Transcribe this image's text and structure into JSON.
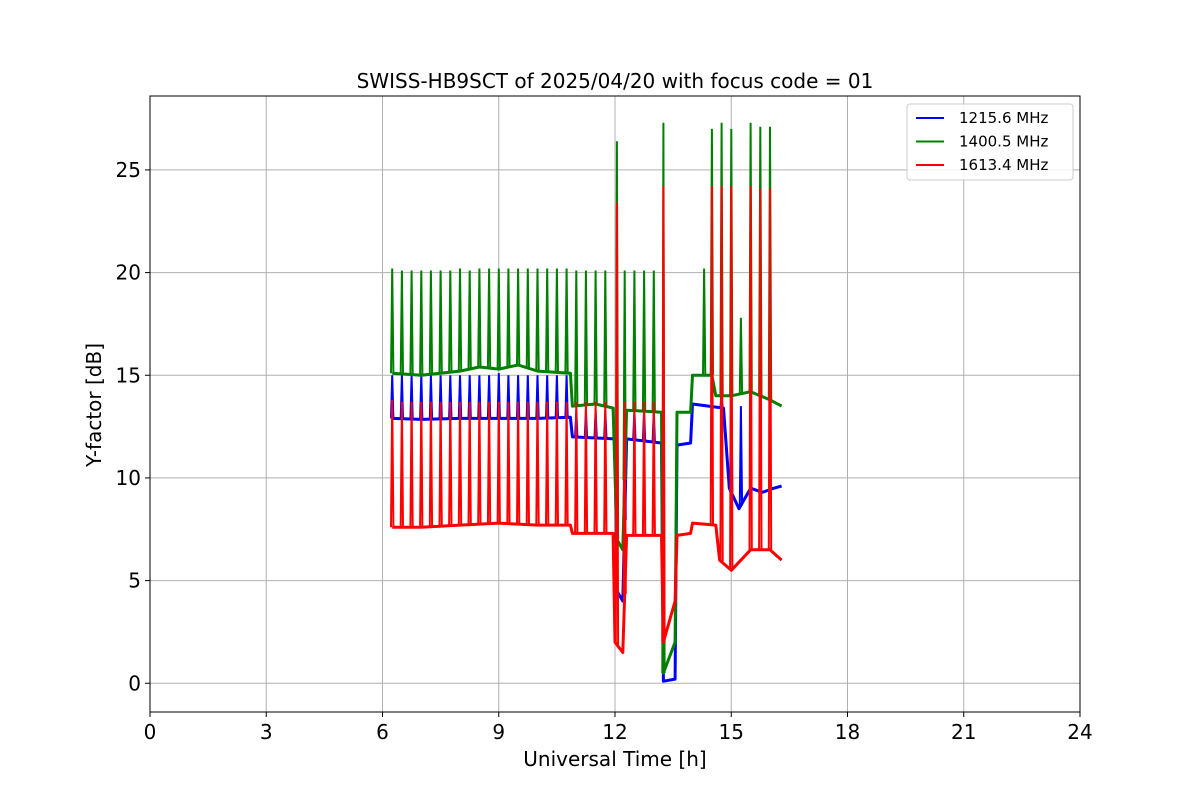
{
  "chart_data": {
    "type": "line",
    "title": "SWISS-HB9SCT of 2025/04/20 with focus code = 01",
    "xlabel": "Universal Time [h]",
    "ylabel": "Y-factor [dB]",
    "xlim": [
      0,
      24
    ],
    "ylim": [
      -1.4,
      28.6
    ],
    "xticks": [
      0,
      3,
      6,
      9,
      12,
      15,
      18,
      21,
      24
    ],
    "yticks": [
      0,
      5,
      10,
      15,
      20,
      25
    ],
    "grid": true,
    "legend_position": "top-right",
    "series": [
      {
        "name": "1215.6 MHz",
        "color": "#0000ff",
        "baseline": [
          [
            6.25,
            12.9
          ],
          [
            7.0,
            12.85
          ],
          [
            8.0,
            12.9
          ],
          [
            9.0,
            12.9
          ],
          [
            10.0,
            12.9
          ],
          [
            10.85,
            12.95
          ],
          [
            10.9,
            12.0
          ],
          [
            12.0,
            11.9
          ],
          [
            12.05,
            4.5
          ],
          [
            12.2,
            4.0
          ],
          [
            12.3,
            11.9
          ],
          [
            13.2,
            11.7
          ],
          [
            13.25,
            0.1
          ],
          [
            13.55,
            0.2
          ],
          [
            13.6,
            11.6
          ],
          [
            13.95,
            11.7
          ],
          [
            14.0,
            13.6
          ],
          [
            14.8,
            13.4
          ],
          [
            14.95,
            9.5
          ],
          [
            15.2,
            8.5
          ],
          [
            15.5,
            9.5
          ],
          [
            15.8,
            9.3
          ],
          [
            16.1,
            9.5
          ],
          [
            16.3,
            9.6
          ]
        ],
        "spikes": [
          [
            6.25,
            15.0
          ],
          [
            6.5,
            15.0
          ],
          [
            6.75,
            15.0
          ],
          [
            7.0,
            15.0
          ],
          [
            7.25,
            15.0
          ],
          [
            7.5,
            15.0
          ],
          [
            7.75,
            15.0
          ],
          [
            8.0,
            15.0
          ],
          [
            8.25,
            15.0
          ],
          [
            8.5,
            15.0
          ],
          [
            8.75,
            15.0
          ],
          [
            9.0,
            15.1
          ],
          [
            9.25,
            15.0
          ],
          [
            9.5,
            15.0
          ],
          [
            9.75,
            15.0
          ],
          [
            10.0,
            15.0
          ],
          [
            10.25,
            15.0
          ],
          [
            10.5,
            15.0
          ],
          [
            10.75,
            15.0
          ],
          [
            11.0,
            13.3
          ],
          [
            11.25,
            13.3
          ],
          [
            11.5,
            13.3
          ],
          [
            11.75,
            13.3
          ],
          [
            12.25,
            13.3
          ],
          [
            12.5,
            13.3
          ],
          [
            12.75,
            13.3
          ],
          [
            13.0,
            13.3
          ],
          [
            14.0,
            13.6
          ],
          [
            14.75,
            14.0
          ],
          [
            15.0,
            15.0
          ],
          [
            15.25,
            13.5
          ]
        ]
      },
      {
        "name": "1400.5 MHz",
        "color": "#008000",
        "baseline": [
          [
            6.25,
            15.1
          ],
          [
            7.0,
            15.0
          ],
          [
            8.0,
            15.2
          ],
          [
            8.5,
            15.4
          ],
          [
            9.0,
            15.3
          ],
          [
            9.5,
            15.5
          ],
          [
            10.0,
            15.2
          ],
          [
            10.85,
            15.1
          ],
          [
            10.9,
            13.5
          ],
          [
            11.5,
            13.6
          ],
          [
            11.95,
            13.4
          ],
          [
            12.05,
            7.0
          ],
          [
            12.2,
            6.5
          ],
          [
            12.3,
            13.3
          ],
          [
            13.2,
            13.2
          ],
          [
            13.25,
            0.5
          ],
          [
            13.55,
            2.0
          ],
          [
            13.6,
            13.2
          ],
          [
            13.95,
            13.2
          ],
          [
            14.0,
            15.0
          ],
          [
            14.5,
            15.0
          ],
          [
            14.6,
            14.0
          ],
          [
            15.0,
            14.0
          ],
          [
            15.5,
            14.2
          ],
          [
            16.0,
            13.8
          ],
          [
            16.3,
            13.5
          ]
        ],
        "spikes": [
          [
            6.25,
            20.2
          ],
          [
            6.5,
            20.1
          ],
          [
            6.75,
            20.1
          ],
          [
            7.0,
            20.1
          ],
          [
            7.25,
            20.1
          ],
          [
            7.5,
            20.1
          ],
          [
            7.75,
            20.1
          ],
          [
            8.0,
            20.2
          ],
          [
            8.25,
            20.1
          ],
          [
            8.5,
            20.2
          ],
          [
            8.75,
            20.2
          ],
          [
            9.0,
            20.2
          ],
          [
            9.25,
            20.2
          ],
          [
            9.5,
            20.2
          ],
          [
            9.75,
            20.2
          ],
          [
            10.0,
            20.2
          ],
          [
            10.25,
            20.2
          ],
          [
            10.5,
            20.2
          ],
          [
            10.75,
            20.2
          ],
          [
            11.0,
            20.1
          ],
          [
            11.25,
            20.1
          ],
          [
            11.5,
            20.1
          ],
          [
            11.75,
            20.1
          ],
          [
            12.05,
            26.4
          ],
          [
            12.25,
            20.1
          ],
          [
            12.5,
            20.1
          ],
          [
            12.75,
            20.1
          ],
          [
            13.0,
            20.1
          ],
          [
            13.25,
            27.3
          ],
          [
            14.3,
            20.2
          ],
          [
            14.5,
            27.0
          ],
          [
            14.75,
            27.3
          ],
          [
            15.0,
            27.0
          ],
          [
            15.25,
            17.8
          ],
          [
            15.5,
            27.3
          ],
          [
            15.75,
            27.1
          ],
          [
            16.0,
            27.1
          ]
        ]
      },
      {
        "name": "1613.4 MHz",
        "color": "#ff0000",
        "baseline": [
          [
            6.25,
            7.6
          ],
          [
            7.0,
            7.6
          ],
          [
            8.0,
            7.7
          ],
          [
            9.0,
            7.8
          ],
          [
            10.0,
            7.7
          ],
          [
            10.85,
            7.7
          ],
          [
            10.9,
            7.3
          ],
          [
            11.5,
            7.3
          ],
          [
            11.95,
            7.3
          ],
          [
            12.0,
            2.0
          ],
          [
            12.2,
            1.5
          ],
          [
            12.3,
            7.2
          ],
          [
            13.2,
            7.2
          ],
          [
            13.25,
            2.0
          ],
          [
            13.55,
            4.0
          ],
          [
            13.6,
            7.2
          ],
          [
            13.95,
            7.3
          ],
          [
            14.0,
            7.8
          ],
          [
            14.6,
            7.7
          ],
          [
            14.7,
            6.0
          ],
          [
            15.0,
            5.5
          ],
          [
            15.5,
            6.5
          ],
          [
            16.0,
            6.5
          ],
          [
            16.3,
            6.0
          ]
        ],
        "spikes": [
          [
            6.25,
            13.8
          ],
          [
            6.5,
            13.7
          ],
          [
            6.75,
            13.7
          ],
          [
            7.0,
            13.7
          ],
          [
            7.25,
            13.7
          ],
          [
            7.5,
            13.7
          ],
          [
            7.75,
            13.7
          ],
          [
            8.0,
            13.7
          ],
          [
            8.25,
            13.7
          ],
          [
            8.5,
            13.7
          ],
          [
            8.75,
            13.7
          ],
          [
            9.0,
            13.7
          ],
          [
            9.25,
            13.7
          ],
          [
            9.5,
            13.7
          ],
          [
            9.75,
            13.7
          ],
          [
            10.0,
            13.7
          ],
          [
            10.25,
            13.7
          ],
          [
            10.5,
            13.7
          ],
          [
            10.75,
            13.7
          ],
          [
            11.0,
            13.7
          ],
          [
            11.25,
            13.7
          ],
          [
            11.5,
            13.7
          ],
          [
            11.75,
            13.7
          ],
          [
            12.05,
            23.4
          ],
          [
            12.25,
            13.7
          ],
          [
            12.5,
            13.7
          ],
          [
            12.75,
            13.7
          ],
          [
            13.0,
            13.7
          ],
          [
            13.25,
            24.2
          ],
          [
            14.5,
            24.2
          ],
          [
            14.75,
            24.2
          ],
          [
            15.0,
            24.2
          ],
          [
            15.5,
            24.2
          ],
          [
            15.75,
            24.1
          ],
          [
            16.0,
            24.1
          ]
        ]
      }
    ]
  }
}
